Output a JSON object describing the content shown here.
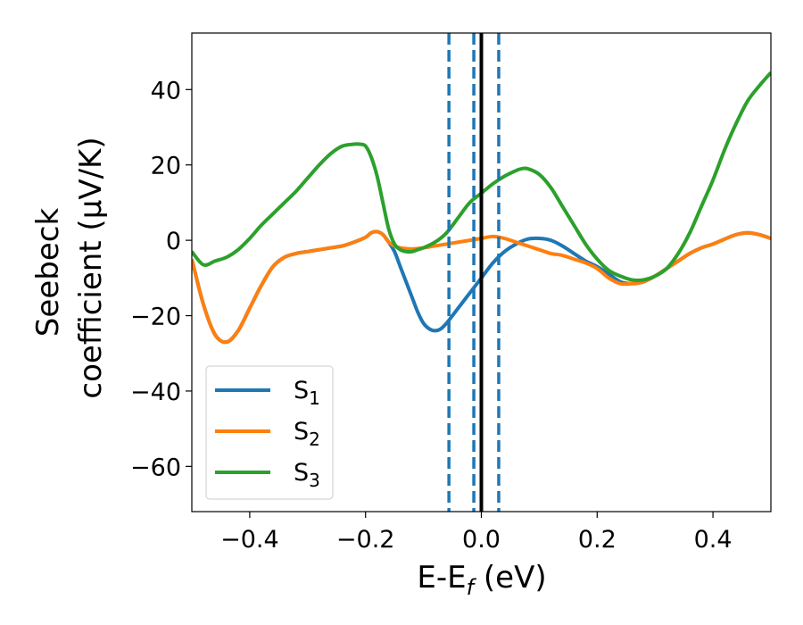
{
  "chart_data": {
    "type": "line",
    "xlabel": "E-E",
    "xlabel_sub": "f",
    "xlabel_unit": "(eV)",
    "ylabel_line1": "Seebeck",
    "ylabel_line2": "coefficient  (μV/K)",
    "xlim": [
      -0.5,
      0.5
    ],
    "ylim": [
      -72,
      55
    ],
    "xticks": [
      -0.4,
      -0.2,
      0.0,
      0.2,
      0.4
    ],
    "xtick_labels": [
      "−0.4",
      "−0.2",
      "0.0",
      "0.2",
      "0.4"
    ],
    "yticks": [
      -60,
      -40,
      -20,
      0,
      20,
      40
    ],
    "ytick_labels": [
      "−60",
      "−40",
      "−20",
      "0",
      "20",
      "40"
    ],
    "grid": false,
    "legend_placement": "lower-left",
    "vertical_lines": [
      {
        "x": -0.056,
        "style": "dashed",
        "color": "#1f77b4"
      },
      {
        "x": -0.013,
        "style": "dashed",
        "color": "#1f77b4"
      },
      {
        "x": 0.0,
        "style": "solid",
        "color": "#000000"
      },
      {
        "x": 0.03,
        "style": "dashed",
        "color": "#1f77b4"
      }
    ],
    "series": [
      {
        "name": "S",
        "sub": "1",
        "color": "#1f77b4",
        "x": [
          -0.5,
          -0.48,
          -0.46,
          -0.44,
          -0.42,
          -0.4,
          -0.38,
          -0.36,
          -0.34,
          -0.32,
          -0.3,
          -0.28,
          -0.26,
          -0.24,
          -0.22,
          -0.2,
          -0.19,
          -0.18,
          -0.17,
          -0.16,
          -0.15,
          -0.14,
          -0.13,
          -0.12,
          -0.11,
          -0.1,
          -0.09,
          -0.08,
          -0.07,
          -0.06,
          -0.05,
          -0.04,
          -0.02,
          0.0,
          0.02,
          0.04,
          0.06,
          0.08,
          0.1,
          0.12,
          0.14,
          0.16,
          0.18,
          0.2,
          0.22,
          0.24,
          0.26,
          0.28,
          0.3,
          0.32,
          0.34,
          0.36,
          0.38,
          0.4,
          0.42,
          0.44,
          0.46,
          0.48,
          0.5
        ],
        "y": [
          -5,
          -17,
          -25,
          -27,
          -24,
          -18,
          -12,
          -7,
          -4.5,
          -3.5,
          -3,
          -2.5,
          -2,
          -1.5,
          -0.5,
          0.8,
          2,
          2.3,
          1.5,
          -0.5,
          -3,
          -7,
          -11,
          -15,
          -19,
          -22,
          -23.5,
          -24,
          -23.5,
          -22,
          -20,
          -18,
          -14,
          -10,
          -6,
          -3,
          -1,
          0.3,
          0.5,
          0,
          -1.5,
          -3.5,
          -5.5,
          -7,
          -9,
          -11,
          -11.5,
          -11,
          -9.5,
          -7.5,
          -5.5,
          -3.5,
          -2,
          -1,
          0.3,
          1.5,
          2,
          1.5,
          0.5
        ]
      },
      {
        "name": "S",
        "sub": "2",
        "color": "#ff7f0e",
        "x": [
          -0.5,
          -0.48,
          -0.46,
          -0.44,
          -0.42,
          -0.4,
          -0.38,
          -0.36,
          -0.34,
          -0.32,
          -0.3,
          -0.28,
          -0.26,
          -0.24,
          -0.22,
          -0.2,
          -0.19,
          -0.18,
          -0.17,
          -0.16,
          -0.15,
          -0.14,
          -0.12,
          -0.1,
          -0.08,
          -0.06,
          -0.04,
          -0.02,
          0.0,
          0.02,
          0.04,
          0.06,
          0.08,
          0.1,
          0.12,
          0.14,
          0.16,
          0.18,
          0.2,
          0.22,
          0.24,
          0.26,
          0.28,
          0.3,
          0.32,
          0.34,
          0.36,
          0.38,
          0.4,
          0.42,
          0.44,
          0.46,
          0.48,
          0.5
        ],
        "y": [
          -5,
          -17,
          -25,
          -27,
          -24,
          -18,
          -12,
          -7,
          -4.5,
          -3.5,
          -3,
          -2.5,
          -2,
          -1.5,
          -0.5,
          0.8,
          2,
          2.3,
          1.5,
          -0.5,
          -1.5,
          -2,
          -2.3,
          -2,
          -1.5,
          -1,
          -0.5,
          0,
          0.5,
          1,
          0.5,
          -0.5,
          -1.5,
          -2.5,
          -3.5,
          -4,
          -5,
          -6,
          -7.5,
          -10,
          -11.5,
          -11.5,
          -11,
          -9.5,
          -7.5,
          -5.5,
          -3.5,
          -2,
          -1,
          0.3,
          1.5,
          2,
          1.5,
          0.5
        ]
      },
      {
        "name": "S",
        "sub": "3",
        "color": "#2ca02c",
        "x": [
          -0.5,
          -0.48,
          -0.46,
          -0.44,
          -0.42,
          -0.4,
          -0.38,
          -0.36,
          -0.34,
          -0.32,
          -0.3,
          -0.28,
          -0.26,
          -0.24,
          -0.22,
          -0.21,
          -0.2,
          -0.19,
          -0.18,
          -0.17,
          -0.16,
          -0.15,
          -0.14,
          -0.13,
          -0.12,
          -0.11,
          -0.1,
          -0.08,
          -0.06,
          -0.04,
          -0.02,
          0.0,
          0.02,
          0.04,
          0.06,
          0.07,
          0.08,
          0.1,
          0.12,
          0.14,
          0.16,
          0.18,
          0.2,
          0.22,
          0.24,
          0.26,
          0.28,
          0.3,
          0.32,
          0.34,
          0.36,
          0.38,
          0.4,
          0.42,
          0.44,
          0.46,
          0.48,
          0.5
        ],
        "y": [
          -3,
          -6.5,
          -5.5,
          -4.5,
          -2.5,
          0.5,
          4,
          7,
          10,
          13,
          16.5,
          20,
          23,
          25,
          25.5,
          25.5,
          25,
          22,
          17,
          10,
          3,
          -1,
          -2.5,
          -3,
          -3,
          -2.5,
          -2,
          -0.5,
          2,
          6,
          10,
          12.5,
          15,
          17,
          18.5,
          19,
          19,
          17.5,
          14,
          9,
          4,
          -1,
          -5,
          -8,
          -9.5,
          -10.5,
          -10.5,
          -9.5,
          -7.5,
          -3.5,
          2,
          9,
          16,
          24,
          31,
          37,
          41,
          44.5
        ]
      }
    ]
  }
}
